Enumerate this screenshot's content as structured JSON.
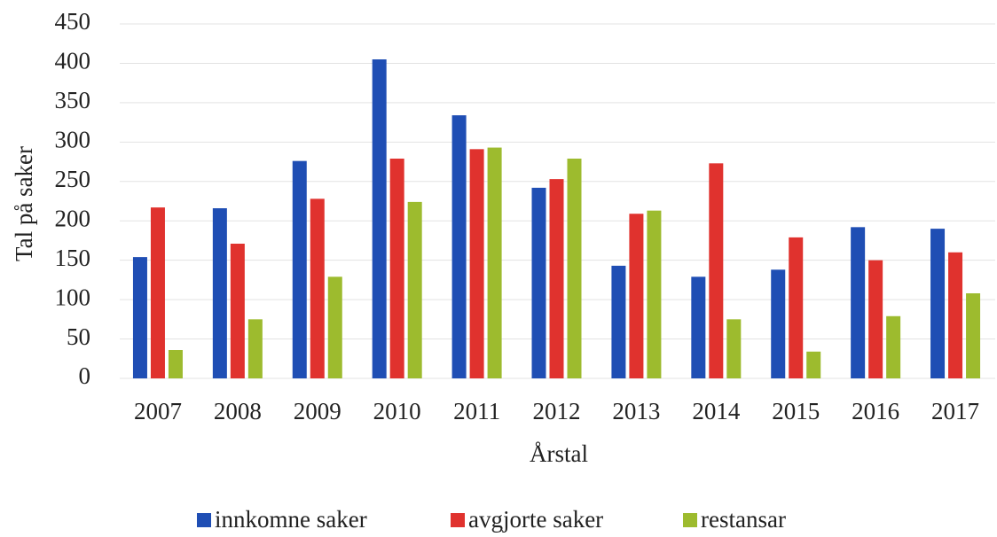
{
  "chart_data": {
    "type": "bar",
    "x_label": "Årstal",
    "y_label": "Tal på saker",
    "categories": [
      "2007",
      "2008",
      "2009",
      "2010",
      "2011",
      "2012",
      "2013",
      "2014",
      "2015",
      "2016",
      "2017"
    ],
    "series": [
      {
        "name": "innkomne saker",
        "color": "#1f4eb4",
        "values": [
          154,
          216,
          276,
          405,
          334,
          242,
          143,
          129,
          138,
          192,
          190
        ]
      },
      {
        "name": "avgjorte saker",
        "color": "#e0322e",
        "values": [
          217,
          171,
          228,
          279,
          291,
          253,
          209,
          273,
          179,
          150,
          160
        ]
      },
      {
        "name": "restansar",
        "color": "#9dbb2e",
        "values": [
          36,
          75,
          129,
          224,
          293,
          279,
          213,
          75,
          34,
          79,
          108
        ]
      }
    ],
    "ylim": [
      0,
      450
    ],
    "yticks": [
      0,
      50,
      100,
      150,
      200,
      250,
      300,
      350,
      400,
      450
    ],
    "grid": true,
    "legend": "bottom"
  }
}
